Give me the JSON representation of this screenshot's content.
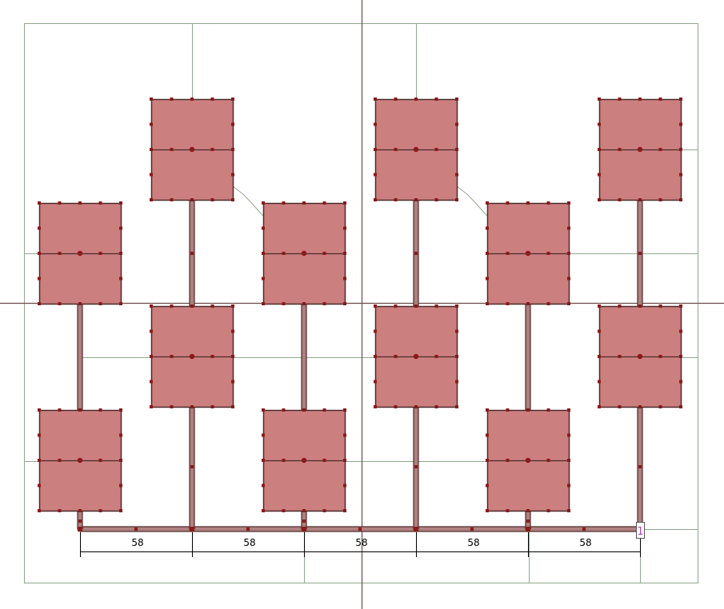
{
  "diagram": {
    "dimensions": [
      "58",
      "58",
      "58",
      "58",
      "58"
    ],
    "port_label": "1",
    "colors": {
      "patch_fill": "#cc7f7f",
      "patch_edge": "#4a2a2a",
      "vertex": "#8b1a1a",
      "grid_line": "#8fa88f",
      "axis_line": "#6b4b4b",
      "port_text": "#b040b0"
    }
  }
}
